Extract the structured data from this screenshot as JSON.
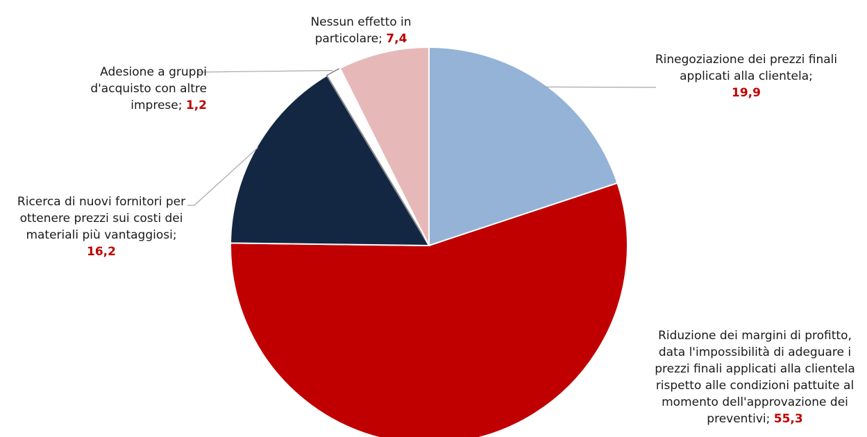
{
  "chart_data": {
    "type": "pie",
    "start_angle_deg": 0,
    "direction": "clockwise",
    "slices": [
      {
        "label": "Rinegoziazione dei prezzi finali applicati alla clientela;",
        "value": 19.9,
        "value_text": "19,9",
        "color": "#95b3d7"
      },
      {
        "label": "Riduzione dei margini di profitto, data l'impossibilità di adeguare i prezzi finali applicati alla clientela rispetto alle condizioni pattuite al momento dell'approvazione dei preventivi;",
        "value": 55.3,
        "value_text": "55,3",
        "color": "#c00000"
      },
      {
        "label": "Ricerca di nuovi fornitori per ottenere prezzi sui costi dei materiali più vantaggiosi;",
        "value": 16.2,
        "value_text": "16,2",
        "color": "#132742"
      },
      {
        "label": "Adesione a gruppi d'acquisto con altre imprese;",
        "value": 1.2,
        "value_text": "1,2",
        "color": "#ffffff"
      },
      {
        "label": "Nessun effetto in particolare;",
        "value": 7.4,
        "value_text": "7,4",
        "color": "#e6b9b8"
      }
    ]
  }
}
